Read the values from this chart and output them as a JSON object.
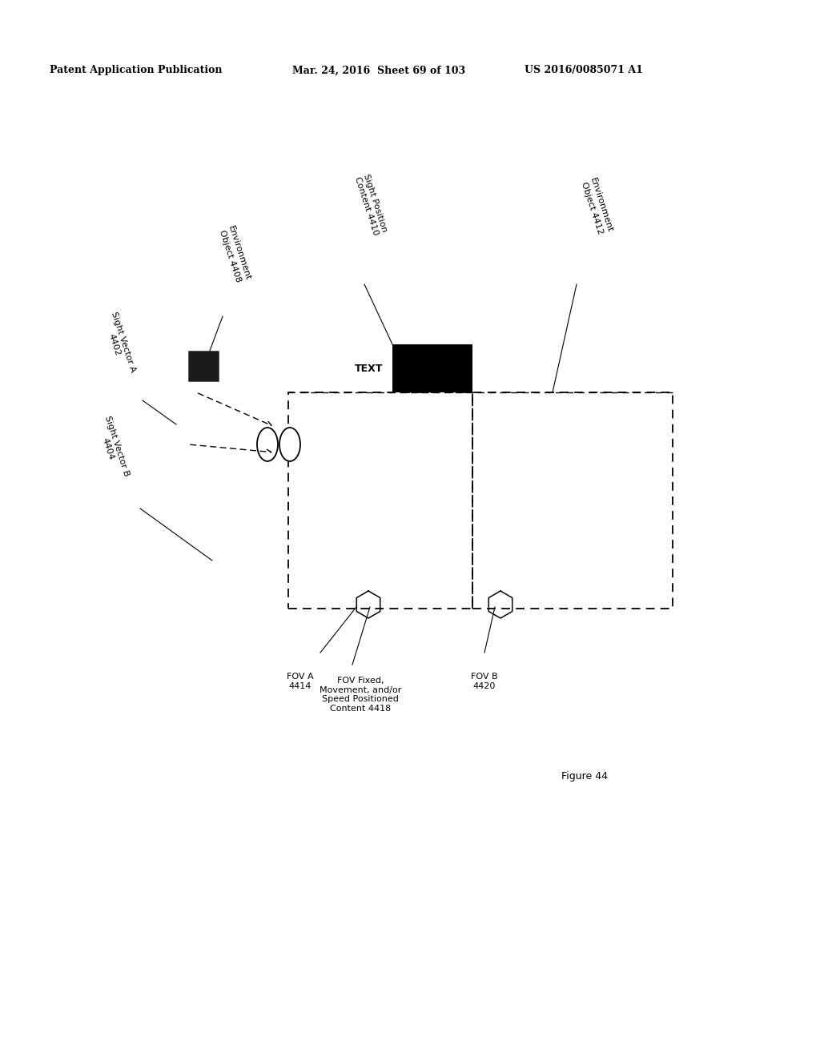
{
  "header_left": "Patent Application Publication",
  "header_mid": "Mar. 24, 2016  Sheet 69 of 103",
  "header_right": "US 2016/0085071 A1",
  "figure_label": "Figure 44",
  "bg_color": "#ffffff",
  "text_color": "#000000"
}
